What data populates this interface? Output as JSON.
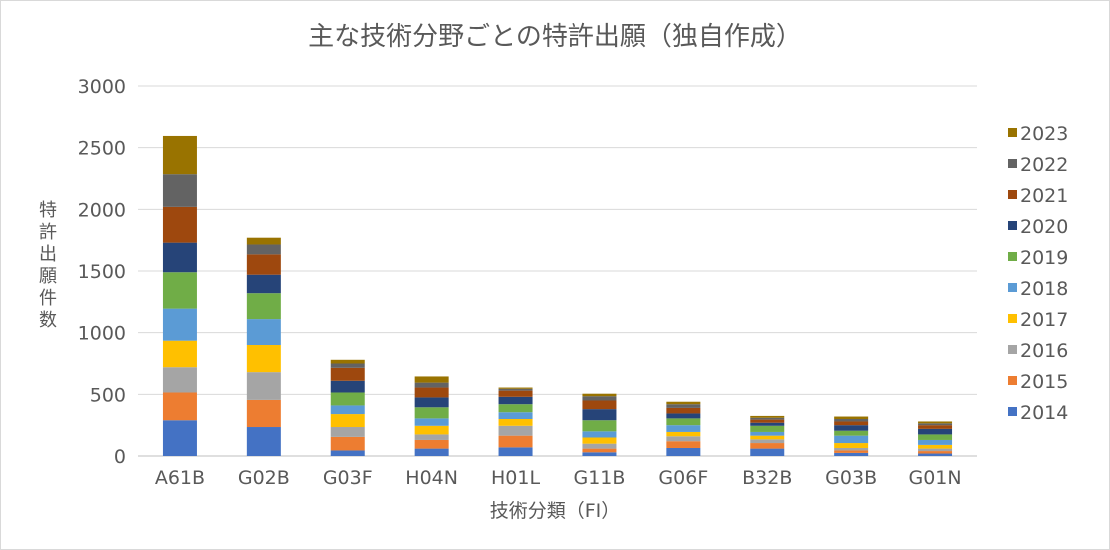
{
  "chart_data": {
    "type": "bar",
    "stacked": true,
    "title": "主な技術分野ごとの特許出願（独自作成）",
    "xlabel": "技術分類（FI）",
    "ylabel": "特許出願件数",
    "ylim": [
      0,
      3000
    ],
    "yticks": [
      0,
      500,
      1000,
      1500,
      2000,
      2500,
      3000
    ],
    "grid": true,
    "legend_position": "right",
    "categories": [
      "A61B",
      "G02B",
      "G03F",
      "H04N",
      "H01L",
      "G11B",
      "G06F",
      "B32B",
      "G03B",
      "G01N"
    ],
    "series": [
      {
        "name": "2014",
        "color": "#4472c4",
        "values": [
          290,
          235,
          45,
          60,
          70,
          30,
          65,
          60,
          25,
          20
        ]
      },
      {
        "name": "2015",
        "color": "#ed7d31",
        "values": [
          225,
          220,
          110,
          70,
          95,
          30,
          55,
          45,
          20,
          20
        ]
      },
      {
        "name": "2016",
        "color": "#a5a5a5",
        "values": [
          205,
          225,
          80,
          45,
          80,
          40,
          40,
          30,
          20,
          20
        ]
      },
      {
        "name": "2017",
        "color": "#ffc000",
        "values": [
          215,
          220,
          105,
          70,
          55,
          50,
          35,
          30,
          40,
          30
        ]
      },
      {
        "name": "2018",
        "color": "#5b9bd5",
        "values": [
          260,
          210,
          70,
          60,
          55,
          50,
          55,
          30,
          60,
          40
        ]
      },
      {
        "name": "2019",
        "color": "#70ad47",
        "values": [
          295,
          210,
          105,
          90,
          65,
          90,
          55,
          50,
          40,
          45
        ]
      },
      {
        "name": "2020",
        "color": "#264478",
        "values": [
          240,
          150,
          95,
          80,
          60,
          90,
          40,
          25,
          45,
          45
        ]
      },
      {
        "name": "2021",
        "color": "#9e480e",
        "values": [
          290,
          165,
          105,
          80,
          50,
          70,
          45,
          25,
          30,
          30
        ]
      },
      {
        "name": "2022",
        "color": "#636363",
        "values": [
          265,
          80,
          35,
          40,
          15,
          35,
          30,
          15,
          20,
          15
        ]
      },
      {
        "name": "2023",
        "color": "#997300",
        "values": [
          310,
          55,
          30,
          50,
          10,
          20,
          20,
          15,
          20,
          15
        ]
      }
    ]
  }
}
